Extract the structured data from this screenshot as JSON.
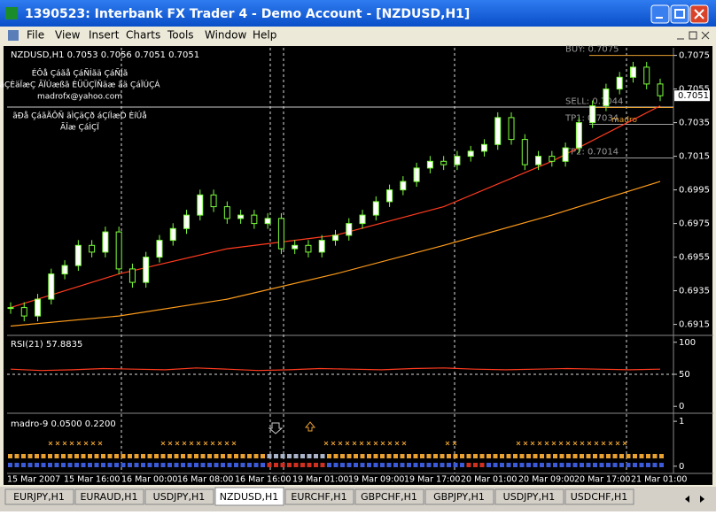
{
  "window": {
    "title": "1390523: Interbank FX Trader 4 - Demo Account - [NZDUSD,H1]",
    "menu": [
      "File",
      "View",
      "Insert",
      "Charts",
      "Tools",
      "Window",
      "Help"
    ]
  },
  "chart_data": {
    "type": "candlestick",
    "symbol_info": "NZDUSD,H1  0.7053 0.7056 0.7051 0.7051",
    "notes": [
      "ÉÔå Çáãå ÇáÑÍãä ÇáÑÍã",
      "áÇÈäÏæÇ ÃÏÚæßã ÈÜÜÇÏÑäæ ãä ÇáÏÚÇÁ",
      "madrofx@yahoo.com",
      "ãÐå ÇáãÄÔÑ ãÌÇäÇð áÇíÌæÒ ÈíÚå",
      "ÃÎæ ÇáÌÇÏ"
    ],
    "close": [
      0.6925,
      0.692,
      0.693,
      0.6945,
      0.695,
      0.6962,
      0.6958,
      0.697,
      0.6948,
      0.694,
      0.6955,
      0.6965,
      0.6972,
      0.698,
      0.6992,
      0.6985,
      0.6978,
      0.698,
      0.6975,
      0.6978,
      0.696,
      0.6962,
      0.6958,
      0.6965,
      0.6968,
      0.6975,
      0.698,
      0.6988,
      0.6995,
      0.7,
      0.7008,
      0.7012,
      0.701,
      0.7015,
      0.7018,
      0.7022,
      0.7038,
      0.7025,
      0.701,
      0.7015,
      0.7012,
      0.702,
      0.7035,
      0.7045,
      0.7055,
      0.7062,
      0.7068,
      0.7058,
      0.7051
    ],
    "series": [
      {
        "color": "#ff3b1f",
        "values": [
          0.6925,
          0.6945,
          0.696,
          0.6968,
          0.6985,
          0.7012,
          0.7045
        ]
      },
      {
        "color": "#ff9c1a",
        "values": [
          0.6914,
          0.692,
          0.693,
          0.6945,
          0.6962,
          0.698,
          0.7
        ]
      }
    ],
    "ylim": [
      0.6909,
      0.7079
    ],
    "yticks": [
      0.6915,
      0.6935,
      0.6955,
      0.6975,
      0.6995,
      0.7015,
      0.7035,
      0.7055,
      0.7075
    ],
    "current_price": 0.7051,
    "levels": [
      {
        "label": "BUY: 0.7075",
        "value": 0.7075,
        "color": "#e8a030"
      },
      {
        "label": "SELL: 0.7044",
        "value": 0.7044,
        "color": "#e8a030"
      },
      {
        "label": "TP1: 0.7034",
        "value": 0.7034,
        "color": "#a0a0a0"
      },
      {
        "label": "TP2: 0.7014",
        "value": 0.7014,
        "color": "#a0a0a0"
      }
    ],
    "level_tag": "madro",
    "time_labels": [
      "15 Mar 2007",
      "15 Mar 16:00",
      "16 Mar 00:00",
      "16 Mar 08:00",
      "16 Mar 16:00",
      "19 Mar 01:00",
      "19 Mar 09:00",
      "19 Mar 17:00",
      "20 Mar 01:00",
      "20 Mar 09:00",
      "20 Mar 17:00",
      "21 Mar 01:00"
    ],
    "rsi": {
      "label": "RSI(21) 57.8835",
      "ylim": [
        -8,
        108
      ],
      "yticks": [
        0,
        50,
        100
      ],
      "level": 50,
      "color": "#ff3b1f",
      "values": [
        58,
        56,
        57,
        59,
        58,
        57,
        60,
        58,
        56,
        57,
        59,
        58,
        57,
        59,
        60,
        58,
        57,
        58,
        59,
        58,
        57,
        58
      ]
    },
    "madro": {
      "label": "madro-9 0.0500 0.2200",
      "ylim": [
        -0.16,
        1.14
      ],
      "yticks": [
        0,
        1
      ]
    }
  },
  "tabs": [
    "EURJPY,H1",
    "EURAUD,H1",
    "USDJPY,H1",
    "NZDUSD,H1",
    "EURCHF,H1",
    "GBPCHF,H1",
    "GBPJPY,H1",
    "USDJPY,H1",
    "USDCHF,H1"
  ]
}
